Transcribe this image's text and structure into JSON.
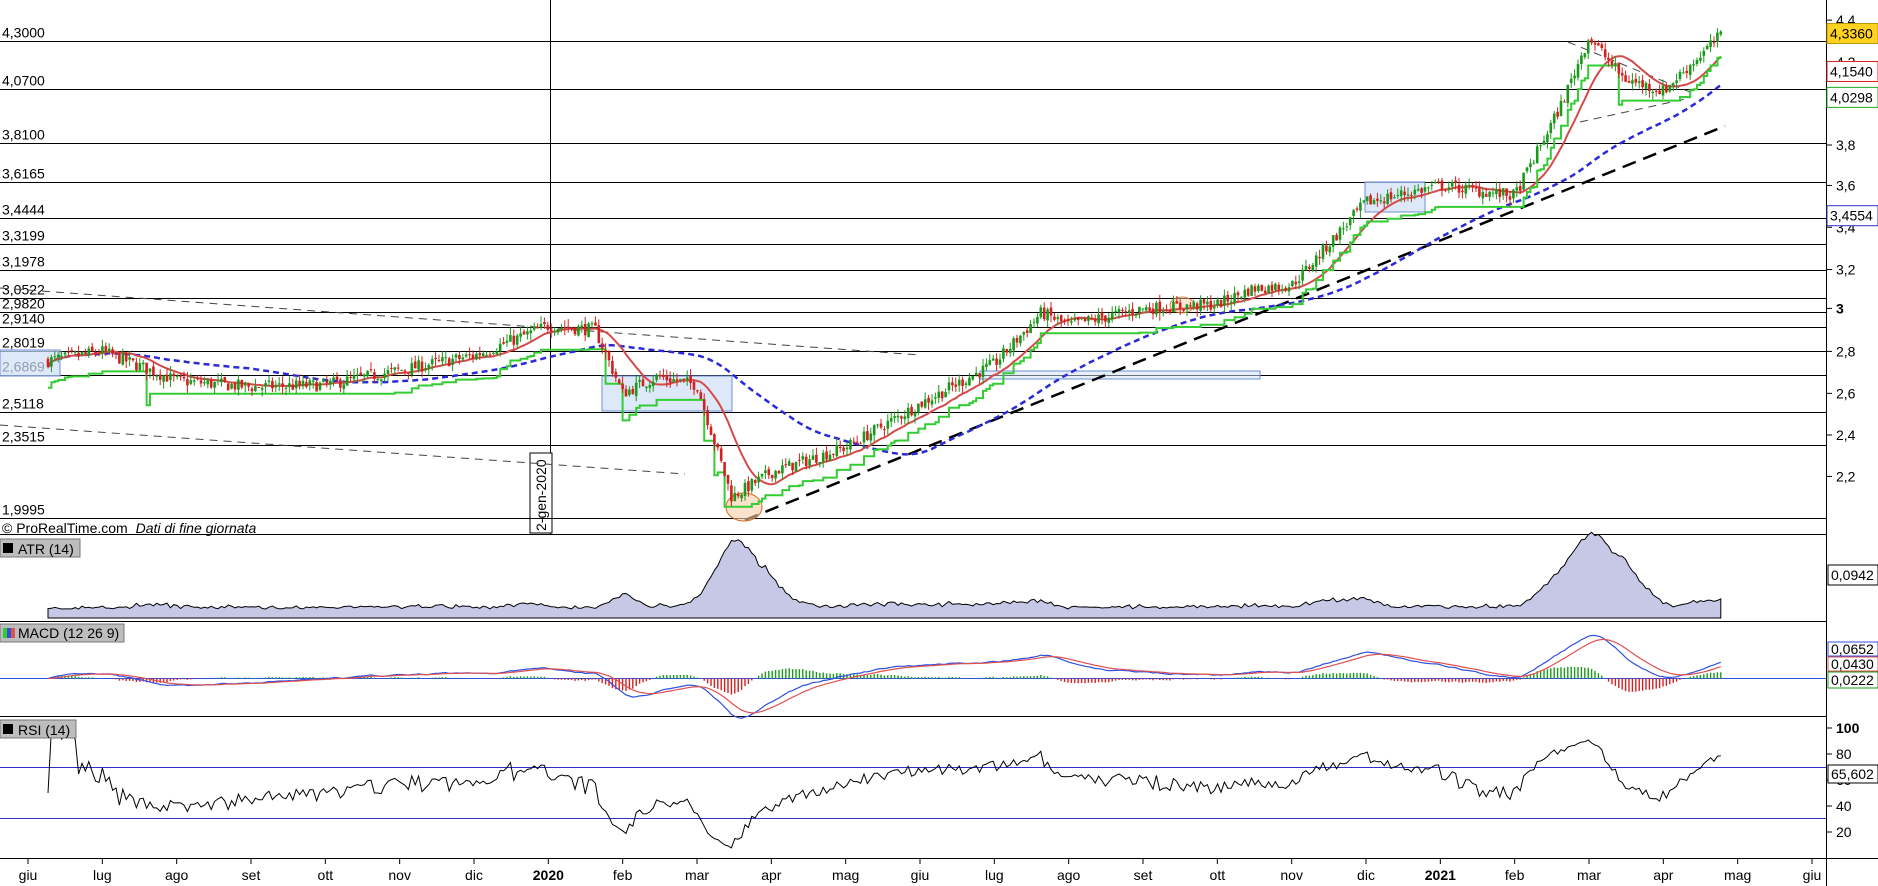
{
  "watermark": "© ProRealTime.com",
  "data_note": "Dati di fine giornata",
  "date_marker": "2-gen-2020",
  "x_axis": {
    "months": [
      "giu",
      "lug",
      "ago",
      "set",
      "ott",
      "nov",
      "dic",
      "2020",
      "feb",
      "mar",
      "apr",
      "mag",
      "giu",
      "lug",
      "ago",
      "set",
      "ott",
      "nov",
      "dic",
      "2021",
      "feb",
      "mar",
      "apr",
      "mag",
      "giu"
    ],
    "bold": [
      "2020",
      "2021"
    ]
  },
  "price_panel": {
    "level_labels": [
      "4,3000",
      "4,0700",
      "3,8100",
      "3,6165",
      "3,4444",
      "3,3199",
      "3,1978",
      "3,0522",
      "2,9820",
      "2,9140",
      "2,8019",
      "2,6869",
      "2,5118",
      "2,3515",
      "1,9995"
    ],
    "axis_ticks": [
      "4,4",
      "4,2",
      "3,8",
      "3,6",
      "3,4",
      "3,2",
      "3",
      "2,8",
      "2,6",
      "2,4",
      "2,2"
    ],
    "badges": [
      {
        "text": "4,3360",
        "bg": "#ffd21f",
        "fg": "#000000"
      },
      {
        "text": "4,1540",
        "bg": "#ffffff",
        "fg": "#d42020"
      },
      {
        "text": "4,0298",
        "bg": "#ffffff",
        "fg": "#1fa81f"
      },
      {
        "text": "3,4554",
        "bg": "#ffffff",
        "fg": "#3030c8"
      }
    ]
  },
  "atr_panel": {
    "title": "ATR (14)",
    "value": "0,0942"
  },
  "macd_panel": {
    "title": "MACD (12 26 9)",
    "values": [
      "0,0652",
      "0,0430",
      "0,0222"
    ]
  },
  "rsi_panel": {
    "title": "RSI (14)",
    "ticks": [
      "100",
      "80",
      "60",
      "40",
      "20"
    ],
    "value": "65,602"
  },
  "colors": {
    "up": "#1a9a1a",
    "down": "#d42020",
    "ma_red": "#d44a4a",
    "ma_blue": "#2a2ad8",
    "green_stop": "#33cc33",
    "atr_fill": "#c7c8e6",
    "macd_line": "#3050e0",
    "signal_line": "#e05050",
    "rsi_line": "#000000"
  },
  "chart_data": [
    {
      "type": "candlestick",
      "panel": "price",
      "x_range": [
        "2019-06",
        "2021-06"
      ],
      "ylim": [
        1.95,
        4.45
      ],
      "horizontal_levels": [
        4.3,
        4.07,
        3.81,
        3.6165,
        3.4444,
        3.3199,
        3.1978,
        3.0522,
        2.982,
        2.914,
        2.8019,
        2.6869,
        2.5118,
        2.3515,
        1.9995
      ],
      "close_path": [
        [
          "2019-06",
          2.74
        ],
        [
          "2019-07",
          2.8
        ],
        [
          "2019-08",
          2.66
        ],
        [
          "2019-09",
          2.63
        ],
        [
          "2019-10",
          2.64
        ],
        [
          "2019-11",
          2.71
        ],
        [
          "2019-12",
          2.78
        ],
        [
          "2020-01",
          2.92
        ],
        [
          "2020-01-20",
          2.9
        ],
        [
          "2020-02",
          2.6
        ],
        [
          "2020-02-15",
          2.68
        ],
        [
          "2020-03",
          2.64
        ],
        [
          "2020-03-15",
          2.1
        ],
        [
          "2020-04",
          2.22
        ],
        [
          "2020-05",
          2.34
        ],
        [
          "2020-06",
          2.55
        ],
        [
          "2020-07",
          2.74
        ],
        [
          "2020-07-20",
          2.98
        ],
        [
          "2020-08",
          2.92
        ],
        [
          "2020-09",
          3.0
        ],
        [
          "2020-10",
          3.02
        ],
        [
          "2020-10-15",
          3.1
        ],
        [
          "2020-11",
          3.12
        ],
        [
          "2020-12",
          3.52
        ],
        [
          "2021-01",
          3.6
        ],
        [
          "2021-02",
          3.55
        ],
        [
          "2021-02-20",
          4.0
        ],
        [
          "2021-03",
          4.32
        ],
        [
          "2021-03-15",
          4.12
        ],
        [
          "2021-04",
          4.06
        ],
        [
          "2021-04-25",
          4.336
        ]
      ],
      "overlays": [
        {
          "name": "MA red",
          "last": 4.154
        },
        {
          "name": "stop green",
          "last": 4.0298
        },
        {
          "name": "MA blue",
          "last": 3.4554
        }
      ],
      "last": 4.336
    },
    {
      "type": "area",
      "panel": "ATR (14)",
      "last": 0.0942
    },
    {
      "type": "line",
      "panel": "MACD (12 26 9)",
      "series": [
        {
          "name": "MACD",
          "last": 0.0652
        },
        {
          "name": "signal",
          "last": 0.043
        },
        {
          "name": "histogram",
          "last": 0.0222
        }
      ]
    },
    {
      "type": "line",
      "panel": "RSI (14)",
      "ylim": [
        0,
        100
      ],
      "reference_levels": [
        70,
        30
      ],
      "last": 65.602
    }
  ]
}
